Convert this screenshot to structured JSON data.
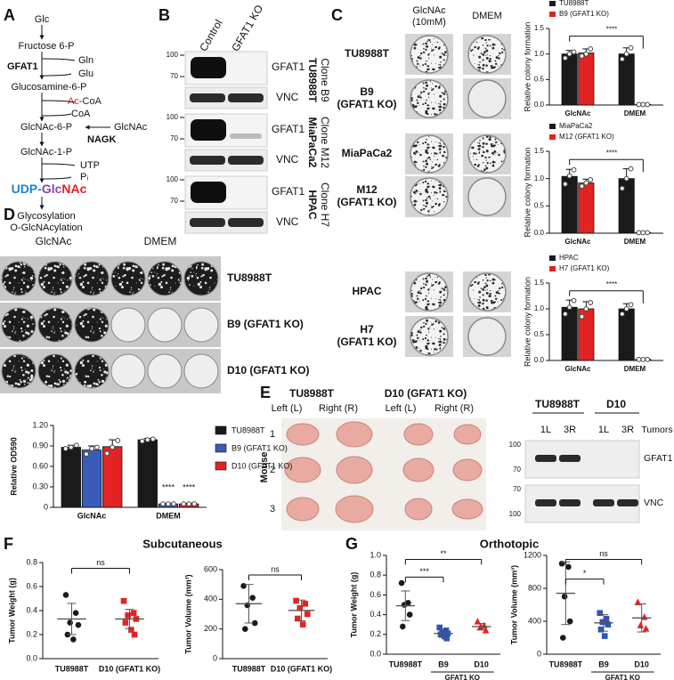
{
  "panel_labels": [
    "A",
    "B",
    "C",
    "D",
    "E",
    "F",
    "G"
  ],
  "pathway": {
    "glc": {
      "text": "Glc",
      "color": "#8e44ad"
    },
    "f6p": "Fructose 6-P",
    "gfat1": "GFAT1",
    "gln": {
      "text": "Gln",
      "color": "#999999"
    },
    "glu": "Glu",
    "g6p": "Glucosamine-6-P",
    "ac_coa": [
      {
        "text": "Ac",
        "color": "#e02020"
      },
      {
        "text": "-CoA",
        "color": "#222222"
      }
    ],
    "coa": "CoA",
    "glcnac6p": "GlcNAc-6-P",
    "glcnac": "GlcNAc",
    "nagk": "NAGK",
    "glcnac1p": "GlcNAc-1-P",
    "utp": {
      "text": "UTP",
      "color": "#1f7fd0"
    },
    "pi": "Pᵢ",
    "udp_glcnac": [
      {
        "text": "UDP-",
        "color": "#1f7fd0"
      },
      {
        "text": "Glc",
        "color": "#8e44ad"
      },
      {
        "text": "NAc",
        "color": "#e02020"
      }
    ],
    "glycosylation": "Glycosylation",
    "o_glcnacylation": "O-GlcNAcylation"
  },
  "blot_b": {
    "lanes": [
      "Control",
      "GFAT1 KO"
    ],
    "markers": [
      100,
      70
    ],
    "proteins": [
      "GFAT1",
      "VNC"
    ],
    "groups": [
      {
        "cell_line": "TU8988T",
        "clone": "Clone B9"
      },
      {
        "cell_line": "MiaPaCa2",
        "clone": "Clone M12"
      },
      {
        "cell_line": "HPAC",
        "clone": "Clone H7"
      }
    ]
  },
  "colony_c": {
    "columns": [
      [
        "GlcNAc",
        "(10mM)"
      ],
      [
        "DMEM"
      ]
    ],
    "rows": [
      [
        "TU8988T"
      ],
      [
        "B9",
        "(GFAT1 KO)"
      ],
      [
        "MiaPaCa2"
      ],
      [
        "M12",
        "(GFAT1 KO)"
      ],
      [
        "HPAC"
      ],
      [
        "H7",
        "(GFAT1 KO)"
      ]
    ]
  },
  "plates_d": {
    "columns": [
      "GlcNAc",
      "DMEM"
    ],
    "rows": [
      "TU8988T",
      "B9 (GFAT1 KO)",
      "D10 (GFAT1 KO)"
    ]
  },
  "tumors_e": {
    "groups": [
      "TU8988T",
      "D10 (GFAT1 KO)"
    ],
    "sides": [
      "Left (L)",
      "Right (R)"
    ],
    "axis_label": "Mouse",
    "mice": [
      "1",
      "2",
      "3"
    ]
  },
  "blot_e": {
    "groups": [
      "TU8988T",
      "D10"
    ],
    "lanes": [
      "1L",
      "3R"
    ],
    "lanes_label": "Tumors",
    "proteins": [
      "GFAT1",
      "VNC"
    ],
    "markers": [
      [
        100,
        70
      ],
      [
        70,
        100
      ]
    ]
  },
  "section_titles": [
    "Subcutaneous",
    "Orthotopic"
  ],
  "charts": [
    {
      "type": "bar",
      "ylabel": "Relative colony formation",
      "categories": [
        "GlcNAc",
        "DMEM"
      ],
      "series": [
        {
          "name": "TU8988T",
          "color": "#1a1a1a",
          "values": [
            1.0,
            1.0
          ],
          "errors": [
            0.07,
            0.12
          ],
          "points": [
            [
              0.92,
              1.0,
              1.04
            ],
            [
              0.9,
              1.0,
              1.12
            ]
          ]
        },
        {
          "name": "B9 (GFAT1 KO)",
          "color": "#e32323",
          "values": [
            1.02,
            0.01
          ],
          "errors": [
            0.08,
            0.005
          ],
          "points": [
            [
              0.96,
              1.0,
              1.1
            ],
            [
              0.01,
              0.01,
              0.01
            ]
          ]
        }
      ],
      "ylim": [
        0,
        1.5
      ],
      "yticks": [
        {
          "value": 0,
          "label": "0.0"
        },
        0.5,
        {
          "value": 1,
          "label": "1.0"
        },
        1.5
      ],
      "legend": "top",
      "annotations": [
        "****"
      ]
    },
    {
      "type": "bar",
      "ylabel": "Relative colony formation",
      "categories": [
        "GlcNAc",
        "DMEM"
      ],
      "series": [
        {
          "name": "MiaPaCa2",
          "color": "#1a1a1a",
          "values": [
            1.04,
            1.0
          ],
          "errors": [
            0.13,
            0.18
          ],
          "points": [
            [
              0.9,
              1.05,
              1.16
            ],
            [
              0.82,
              1.0,
              1.18
            ]
          ]
        },
        {
          "name": "M12 (GFAT1 KO)",
          "color": "#e32323",
          "values": [
            0.92,
            0.01
          ],
          "errors": [
            0.07,
            0.005
          ],
          "points": [
            [
              0.86,
              0.92,
              0.98
            ],
            [
              0.01,
              0.01,
              0.01
            ]
          ]
        }
      ],
      "ylim": [
        0,
        1.5
      ],
      "yticks": [
        {
          "value": 0,
          "label": "0.0"
        },
        0.5,
        {
          "value": 1,
          "label": "1.0"
        },
        1.5
      ],
      "legend": "top",
      "annotations": [
        "****"
      ]
    },
    {
      "type": "bar",
      "ylabel": "Relative colony formation",
      "categories": [
        "GlcNAc",
        "DMEM"
      ],
      "series": [
        {
          "name": "HPAC",
          "color": "#1a1a1a",
          "values": [
            1.03,
            1.0
          ],
          "errors": [
            0.14,
            0.1
          ],
          "points": [
            [
              0.9,
              1.03,
              1.16
            ],
            [
              0.9,
              1.0,
              1.08
            ]
          ]
        },
        {
          "name": "H7 (GFAT1 KO)",
          "color": "#e32323",
          "values": [
            1.0,
            0.02
          ],
          "errors": [
            0.14,
            0.005
          ],
          "points": [
            [
              0.85,
              1.0,
              1.12
            ],
            [
              0.02,
              0.02,
              0.02
            ]
          ]
        }
      ],
      "ylim": [
        0,
        1.5
      ],
      "yticks": [
        {
          "value": 0,
          "label": "0.0"
        },
        0.5,
        {
          "value": 1,
          "label": "1.0"
        },
        1.5
      ],
      "legend": "top",
      "annotations": [
        "****"
      ]
    },
    {
      "type": "bar",
      "ylabel": "Relative OD590",
      "categories": [
        "GlcNAc",
        "DMEM"
      ],
      "series": [
        {
          "name": "TU8988T",
          "color": "#1a1a1a",
          "values": [
            0.88,
            0.99
          ],
          "errors": [
            0.03,
            0.02
          ],
          "points": [
            [
              0.86,
              0.88,
              0.91
            ],
            [
              0.97,
              0.99,
              1.0
            ]
          ]
        },
        {
          "name": "B9 (GFAT1 KO)",
          "color": "#3a5bb8",
          "values": [
            0.84,
            0.05
          ],
          "errors": [
            0.06,
            0.01
          ],
          "points": [
            [
              0.78,
              0.86,
              0.88
            ],
            [
              0.05,
              0.05,
              0.05
            ]
          ]
        },
        {
          "name": "D10 (GFAT1 KO)",
          "color": "#e32323",
          "values": [
            0.89,
            0.05
          ],
          "errors": [
            0.1,
            0.01
          ],
          "points": [
            [
              0.79,
              0.88,
              0.98
            ],
            [
              0.05,
              0.05,
              0.05
            ]
          ]
        }
      ],
      "ylim": [
        0,
        1.2
      ],
      "yticks": [
        0,
        {
          "value": 0.3,
          "label": "0.30"
        },
        {
          "value": 0.6,
          "label": "0.60"
        },
        {
          "value": 0.9,
          "label": "0.90"
        },
        {
          "value": 1.2,
          "label": "1.20"
        }
      ],
      "legend": "right",
      "annotations": [
        "****",
        "****"
      ]
    },
    {
      "type": "dot",
      "ylabel": "Tumor Weight (g)",
      "categories": [
        "TU8988T",
        "D10 (GFAT1 KO)"
      ],
      "colors": [
        "#1a1a1a",
        "#e32323"
      ],
      "markers": [
        "circle",
        "square"
      ],
      "points": [
        [
          0.53,
          0.38,
          0.3,
          0.28,
          0.2,
          0.16
        ],
        [
          0.48,
          0.38,
          0.36,
          0.33,
          0.3,
          0.24,
          0.2
        ]
      ],
      "means": [
        0.33,
        0.33
      ],
      "sds": [
        0.13,
        0.08
      ],
      "ylim": [
        0,
        0.8
      ],
      "yticks": [
        {
          "value": 0,
          "label": "0.0"
        },
        0.2,
        0.4,
        0.6,
        0.8
      ],
      "annotations": [
        "ns"
      ]
    },
    {
      "type": "dot",
      "ylabel": "Tumor Volume (mm³)",
      "categories": [
        "TU8988T",
        "D10 (GFAT1 KO)"
      ],
      "colors": [
        "#1a1a1a",
        "#e32323"
      ],
      "markers": [
        "circle",
        "square"
      ],
      "points": [
        [
          490,
          410,
          360,
          240,
          200
        ],
        [
          390,
          370,
          340,
          300,
          270,
          230
        ]
      ],
      "means": [
        370,
        325
      ],
      "sds": [
        130,
        70
      ],
      "ylim": [
        0,
        600
      ],
      "yticks": [
        0,
        200,
        400,
        600
      ],
      "annotations": [
        "ns"
      ]
    },
    {
      "type": "dot",
      "ylabel": "Tumor  Weight (g)",
      "categories": [
        "TU8988T",
        "B9",
        "D10"
      ],
      "group_label": "GFAT1 KO",
      "colors": [
        "#1a1a1a",
        "#2f55b5",
        "#e32323"
      ],
      "markers": [
        "circle",
        "square",
        "triangle"
      ],
      "points": [
        [
          0.72,
          0.52,
          0.5,
          0.4,
          0.28
        ],
        [
          0.27,
          0.24,
          0.22,
          0.21,
          0.2,
          0.18,
          0.16
        ],
        [
          0.33,
          0.29,
          0.27,
          0.24
        ]
      ],
      "means": [
        0.49,
        0.21,
        0.28
      ],
      "sds": [
        0.15,
        0.04,
        0.03
      ],
      "ylim": [
        0,
        1
      ],
      "yticks": [
        {
          "value": 0,
          "label": "0.0"
        },
        0.2,
        0.4,
        0.6,
        0.8,
        {
          "value": 1,
          "label": "1.0"
        }
      ],
      "annotations": [
        "***",
        "**"
      ]
    },
    {
      "type": "dot",
      "ylabel": "Tumor Volume (mm³)",
      "categories": [
        "TU8988T",
        "B9",
        "D10"
      ],
      "group_label": "GFAT1 KO",
      "colors": [
        "#1a1a1a",
        "#2f55b5",
        "#e32323"
      ],
      "markers": [
        "circle",
        "square",
        "triangle"
      ],
      "points": [
        [
          1100,
          1060,
          700,
          400,
          200
        ],
        [
          500,
          430,
          390,
          360,
          300,
          220
        ],
        [
          630,
          450,
          350,
          310
        ]
      ],
      "means": [
        740,
        380,
        440
      ],
      "sds": [
        380,
        100,
        170
      ],
      "ylim": [
        0,
        1200
      ],
      "yticks": [
        0,
        400,
        800,
        1200
      ],
      "annotations": [
        "*",
        "ns"
      ]
    }
  ]
}
